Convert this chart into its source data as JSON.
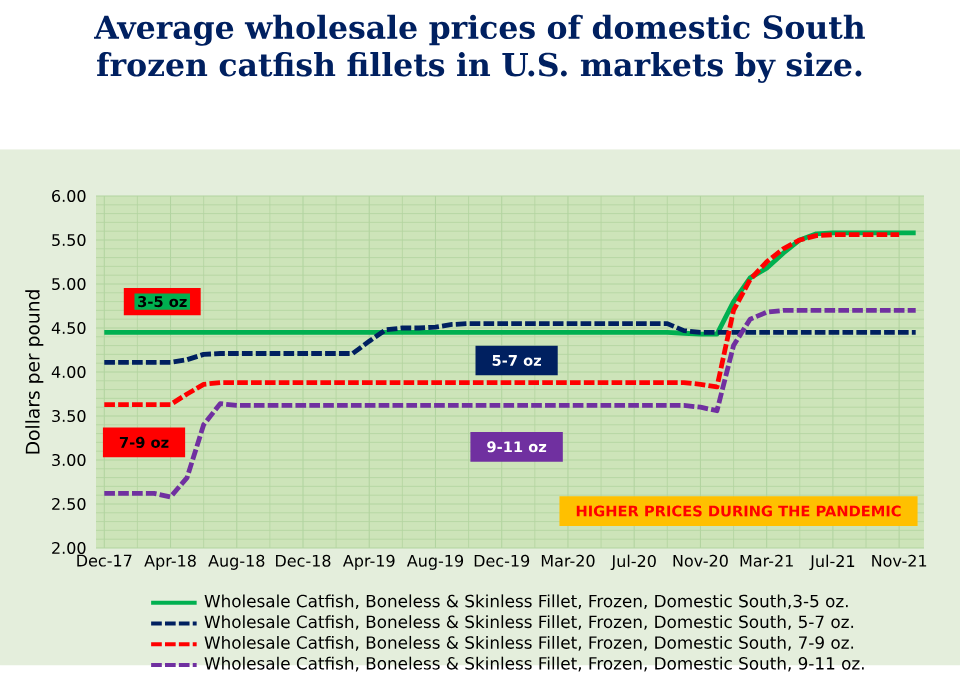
{
  "chart_data": {
    "type": "line",
    "title": "Average wholesale prices of domestic South frozen catfish fillets in U.S. markets by size.",
    "ylabel": "Dollars per pound",
    "categories": [
      "Dec-17",
      null,
      null,
      null,
      "Apr-18",
      null,
      null,
      null,
      "Aug-18",
      null,
      null,
      null,
      "Dec-18",
      null,
      null,
      null,
      "Apr-19",
      null,
      null,
      null,
      "Aug-19",
      null,
      null,
      null,
      "Dec-19",
      null,
      null,
      null,
      "Mar-20",
      null,
      null,
      null,
      "Jul-20",
      null,
      null,
      null,
      "Nov-20",
      null,
      null,
      null,
      "Mar-21",
      null,
      null,
      null,
      "Jul-21",
      null,
      null,
      null,
      "Nov-21",
      null
    ],
    "ylim": [
      2,
      6
    ],
    "yticks": [
      {
        "value": 2,
        "label": "2.00"
      },
      {
        "value": 2.5,
        "label": "2.50"
      },
      {
        "value": 3,
        "label": "3.00"
      },
      {
        "value": 3.5,
        "label": "3.50"
      },
      {
        "value": 4,
        "label": "4.00"
      },
      {
        "value": 4.5,
        "label": "4.50"
      },
      {
        "value": 5,
        "label": "5.00"
      },
      {
        "value": 5.5,
        "label": "5.50"
      },
      {
        "value": 6,
        "label": "6.00"
      }
    ],
    "grid": true,
    "legend": "bottom",
    "marker": "none",
    "series": [
      {
        "name": "Wholesale Catfish, Boneless & Skinless Fillet, Frozen, Domestic South,3-5 oz.",
        "color": "#00b050",
        "line_style": "solid",
        "values": [
          4.45,
          4.45,
          4.45,
          4.45,
          4.45,
          4.45,
          4.45,
          4.45,
          4.45,
          4.45,
          4.45,
          4.45,
          4.45,
          4.45,
          4.45,
          4.45,
          4.45,
          4.45,
          4.45,
          4.45,
          4.45,
          4.45,
          4.45,
          4.45,
          4.45,
          4.45,
          4.45,
          4.45,
          4.45,
          4.45,
          4.45,
          4.45,
          4.45,
          4.45,
          4.45,
          4.44,
          4.43,
          4.43,
          4.8,
          5.07,
          5.18,
          5.35,
          5.5,
          5.57,
          5.58,
          5.58,
          5.58,
          5.58,
          5.58,
          5.58
        ]
      },
      {
        "name": "Wholesale Catfish, Boneless & Skinless Fillet, Frozen, Domestic South, 5-7 oz.",
        "color": "#002060",
        "line_style": "dashed",
        "values": [
          4.11,
          4.11,
          4.11,
          4.11,
          4.11,
          4.14,
          4.2,
          4.21,
          4.21,
          4.21,
          4.21,
          4.21,
          4.21,
          4.21,
          4.21,
          4.21,
          4.35,
          4.48,
          4.5,
          4.5,
          4.51,
          4.54,
          4.55,
          4.55,
          4.55,
          4.55,
          4.55,
          4.55,
          4.55,
          4.55,
          4.55,
          4.55,
          4.55,
          4.55,
          4.55,
          4.47,
          4.45,
          4.45,
          4.45,
          4.45,
          4.45,
          4.45,
          4.45,
          4.45,
          4.45,
          4.45,
          4.45,
          4.45,
          4.45,
          4.45
        ]
      },
      {
        "name": "Wholesale Catfish, Boneless & Skinless Fillet, Frozen, Domestic South, 7-9 oz.",
        "color": "#ff0000",
        "line_style": "dashed",
        "values": [
          3.63,
          3.63,
          3.63,
          3.63,
          3.63,
          3.75,
          3.86,
          3.88,
          3.88,
          3.88,
          3.88,
          3.88,
          3.88,
          3.88,
          3.88,
          3.88,
          3.88,
          3.88,
          3.88,
          3.88,
          3.88,
          3.88,
          3.88,
          3.88,
          3.88,
          3.88,
          3.88,
          3.88,
          3.88,
          3.88,
          3.88,
          3.88,
          3.88,
          3.88,
          3.88,
          3.88,
          3.86,
          3.83,
          4.7,
          5.05,
          5.25,
          5.4,
          5.5,
          5.55,
          5.56,
          5.56,
          5.56,
          5.56,
          5.56,
          null
        ]
      },
      {
        "name": "Wholesale Catfish, Boneless & Skinless Fillet, Frozen, Domestic South, 9-11 oz.",
        "color": "#7030a0",
        "line_style": "dashed",
        "values": [
          2.62,
          2.62,
          2.62,
          2.62,
          2.58,
          2.8,
          3.4,
          3.64,
          3.62,
          3.62,
          3.62,
          3.62,
          3.62,
          3.62,
          3.62,
          3.62,
          3.62,
          3.62,
          3.62,
          3.62,
          3.62,
          3.62,
          3.62,
          3.62,
          3.62,
          3.62,
          3.62,
          3.62,
          3.62,
          3.62,
          3.62,
          3.62,
          3.62,
          3.62,
          3.62,
          3.62,
          3.6,
          3.56,
          4.3,
          4.6,
          4.68,
          4.7,
          4.7,
          4.7,
          4.7,
          4.7,
          4.7,
          4.7,
          4.7,
          4.7
        ]
      }
    ],
    "annotations": [
      "3-5 oz",
      "5-7 oz",
      "7-9 oz",
      "9-11 oz",
      "HIGHER PRICES DURING THE PANDEMIC"
    ]
  }
}
